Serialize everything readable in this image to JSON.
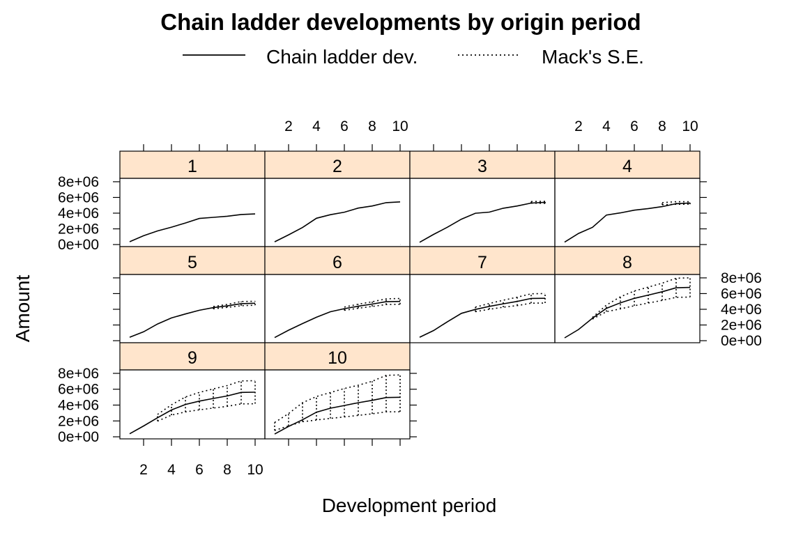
{
  "chart_data": {
    "type": "line",
    "title": "Chain ladder developments by origin period",
    "xlabel": "Development period",
    "ylabel": "Amount",
    "legend": {
      "placement": "top",
      "entries": [
        {
          "label": "Chain ladder dev.",
          "style": "solid"
        },
        {
          "label": "Mack's S.E.",
          "style": "dotted"
        }
      ]
    },
    "xlim": [
      1,
      10
    ],
    "ylim": [
      0,
      8000000
    ],
    "x_ticks": [
      2,
      4,
      6,
      8,
      10
    ],
    "x_tick_labels": [
      "2",
      "4",
      "6",
      "8",
      "10"
    ],
    "y_ticks": [
      0,
      2000000,
      4000000,
      6000000,
      8000000
    ],
    "y_tick_labels": [
      "0e+00",
      "2e+06",
      "4e+06",
      "6e+06",
      "8e+06"
    ],
    "grid": false,
    "strip_color": "#ffe5cc",
    "line_color": "#000000",
    "layout": {
      "columns": 4,
      "rows": 3
    },
    "panels": [
      {
        "name": "1",
        "dev": [
          357848,
          1124788,
          1735330,
          2218270,
          2745596,
          3319994,
          3466336,
          3606286,
          3833515,
          3901463
        ],
        "se": []
      },
      {
        "name": "2",
        "dev": [
          352118,
          1236139,
          2170033,
          3353322,
          3799067,
          4120063,
          4647867,
          4914039,
          5339085,
          5433719
        ],
        "se": [
          [
            0,
            0
          ]
        ]
      },
      {
        "name": "3",
        "dev": [
          290507,
          1292306,
          2218525,
          3235179,
          3985995,
          4132918,
          4628910,
          4909315,
          5285148,
          5378826
        ],
        "se": [
          [
            5278000,
            5480000
          ],
          [
            5250000,
            5508000
          ]
        ]
      },
      {
        "name": "4",
        "dev": [
          310608,
          1418858,
          2195047,
          3757447,
          4029929,
          4381982,
          4588268,
          4835458,
          5205950,
          5297906
        ],
        "se": [
          [
            5075000,
            5338000
          ],
          [
            5132000,
            5465000
          ],
          [
            5140000,
            5456000
          ]
        ]
      },
      {
        "name": "5",
        "dev": [
          443160,
          1136350,
          2128333,
          2897821,
          3402672,
          3873311,
          4207459,
          4434000,
          4720000,
          4770000
        ],
        "se": [
          [
            4060000,
            4355000
          ],
          [
            4248000,
            4620000
          ],
          [
            4450000,
            4990000
          ],
          [
            4520000,
            5020000
          ]
        ]
      },
      {
        "name": "6",
        "dev": [
          396132,
          1333217,
          2180715,
          2985752,
          3691712,
          4074999,
          4390000,
          4660000,
          4963000,
          5003000
        ],
        "se": [
          [
            3870000,
            4280000
          ],
          [
            4130000,
            4650000
          ],
          [
            4360000,
            4960000
          ],
          [
            4600000,
            5330000
          ],
          [
            4640000,
            5370000
          ]
        ]
      },
      {
        "name": "7",
        "dev": [
          440832,
          1288463,
          2419861,
          3483130,
          3983000,
          4370000,
          4700000,
          5003000,
          5380000,
          5400000
        ],
        "se": [
          [
            3700000,
            4270000
          ],
          [
            4000000,
            4740000
          ],
          [
            4260000,
            5150000
          ],
          [
            4470000,
            5540000
          ],
          [
            4780000,
            5980000
          ],
          [
            4800000,
            6000000
          ]
        ]
      },
      {
        "name": "8",
        "dev": [
          359480,
          1421128,
          2864498,
          4122000,
          4820000,
          5390000,
          5810000,
          6230000,
          6740000,
          6780000
        ],
        "se": [
          [
            2760000,
            2970000
          ],
          [
            3700000,
            4540000
          ],
          [
            4050000,
            5590000
          ],
          [
            4450000,
            6330000
          ],
          [
            4800000,
            6820000
          ],
          [
            5130000,
            7330000
          ],
          [
            5520000,
            7960000
          ],
          [
            5550000,
            8010000
          ]
        ]
      },
      {
        "name": "9",
        "dev": [
          376686,
          1363294,
          2400000,
          3380000,
          4080000,
          4500000,
          4830000,
          5150000,
          5600000,
          5620000
        ],
        "se": [
          [
            1980000,
            2820000
          ],
          [
            2730000,
            4030000
          ],
          [
            3140000,
            5020000
          ],
          [
            3400000,
            5600000
          ],
          [
            3620000,
            6040000
          ],
          [
            3840000,
            6460000
          ],
          [
            4150000,
            7050000
          ],
          [
            4170000,
            7070000
          ]
        ]
      },
      {
        "name": "10",
        "dev": [
          344014,
          1300000,
          2150000,
          3100000,
          3600000,
          3950000,
          4300000,
          4600000,
          4950000,
          4980000
        ],
        "se": [
          [
            800000,
            1800000
          ],
          [
            1370000,
            2930000
          ],
          [
            1900000,
            4300000
          ],
          [
            2120000,
            5080000
          ],
          [
            2320000,
            5580000
          ],
          [
            2510000,
            6090000
          ],
          [
            2700000,
            6500000
          ],
          [
            2900000,
            7000000
          ],
          [
            3150000,
            7750000
          ],
          [
            3160000,
            7800000
          ]
        ]
      }
    ]
  }
}
